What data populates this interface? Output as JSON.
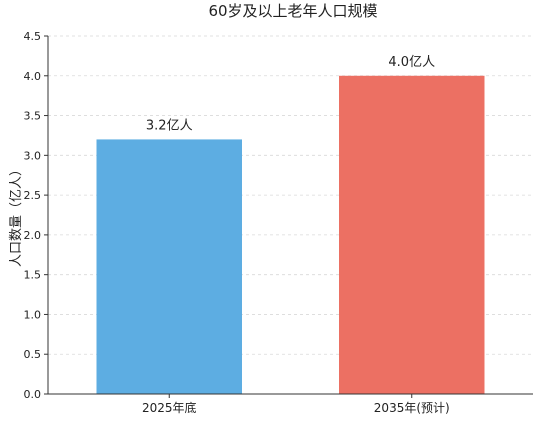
{
  "chart_data": {
    "type": "bar",
    "title": "60岁及以上老年人口规模",
    "ylabel": "人口数量（亿人）",
    "xlabel": "",
    "categories": [
      "2025年底",
      "2035年(预计)"
    ],
    "values": [
      3.2,
      4.0
    ],
    "data_labels": [
      "3.2亿人",
      "4.0亿人"
    ],
    "colors": [
      "#5dade2",
      "#ec7063"
    ],
    "ylim": [
      0,
      4.5
    ],
    "yticks": [
      "0.0",
      "0.5",
      "1.0",
      "1.5",
      "2.0",
      "2.5",
      "3.0",
      "3.5",
      "4.0",
      "4.5"
    ],
    "grid": true,
    "legend": "none"
  }
}
